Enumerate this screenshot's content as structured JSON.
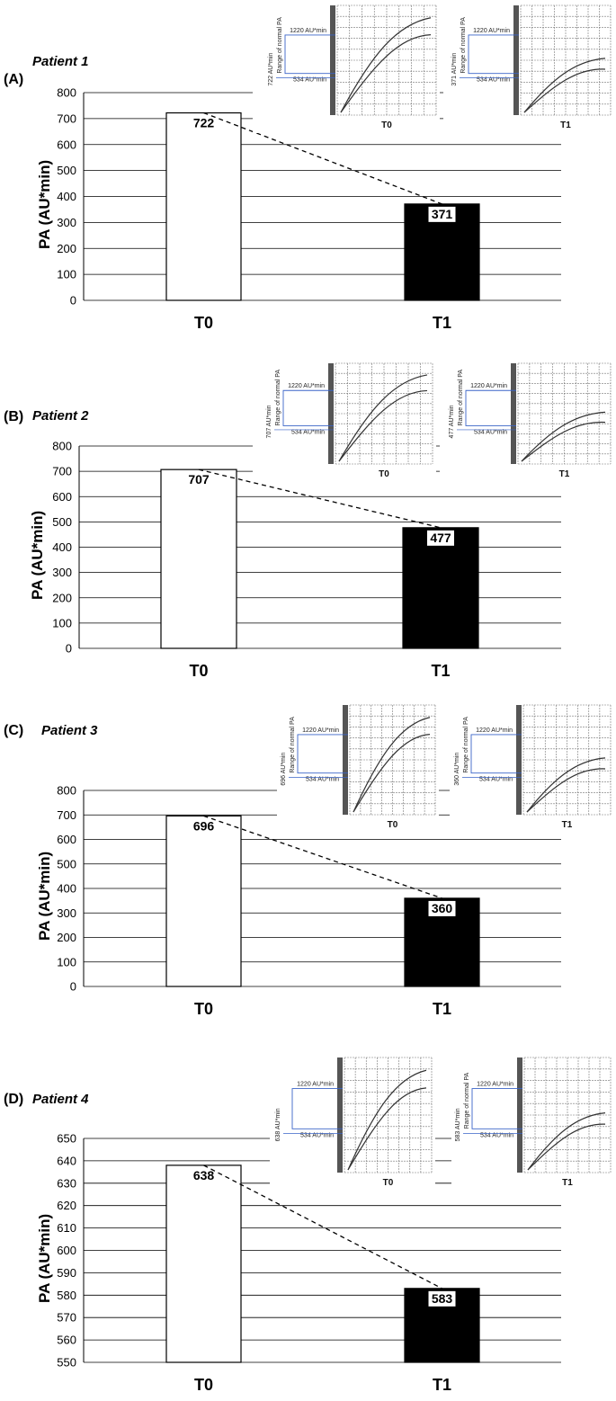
{
  "chart_data": [
    {
      "type": "bar",
      "panel_label": "(A)",
      "title": "Patient 1",
      "ylabel": "PA (AU*min)",
      "categories": [
        "T0",
        "T1"
      ],
      "values": [
        722,
        371
      ],
      "value_labels": [
        "722",
        "371"
      ],
      "bar_colors": [
        "#ffffff",
        "#000000"
      ],
      "ylim": [
        0,
        800
      ],
      "yticks": [
        "0",
        "100",
        "200",
        "300",
        "400",
        "500",
        "600",
        "700",
        "800"
      ],
      "grid": true,
      "connector": "dashed",
      "insets": [
        {
          "name": "T0",
          "value_text": "722 AU*min",
          "upper_text": "1220 AU*min",
          "lower_text": "534 AU*min",
          "range_text": "Range of normal PA"
        },
        {
          "name": "T1",
          "value_text": "371 AU*min",
          "upper_text": "1220 AU*min",
          "lower_text": "534 AU*min",
          "range_text": "Range of normal PA"
        }
      ]
    },
    {
      "type": "bar",
      "panel_label": "(B)",
      "title": "Patient 2",
      "ylabel": "PA (AU*min)",
      "categories": [
        "T0",
        "T1"
      ],
      "values": [
        707,
        477
      ],
      "value_labels": [
        "707",
        "477"
      ],
      "bar_colors": [
        "#ffffff",
        "#000000"
      ],
      "ylim": [
        0,
        800
      ],
      "yticks": [
        "0",
        "100",
        "200",
        "300",
        "400",
        "500",
        "600",
        "700",
        "800"
      ],
      "grid": true,
      "connector": "dashed",
      "insets": [
        {
          "name": "T0",
          "value_text": "707 AU*min",
          "upper_text": "1220 AU*min",
          "lower_text": "534 AU*min",
          "range_text": "Range of normal PA"
        },
        {
          "name": "T1",
          "value_text": "477 AU*min",
          "upper_text": "1220 AU*min",
          "lower_text": "534 AU*min",
          "range_text": "Range of normal PA"
        }
      ]
    },
    {
      "type": "bar",
      "panel_label": "(C)",
      "title": "Patient 3",
      "ylabel": "PA (AU*min)",
      "categories": [
        "T0",
        "T1"
      ],
      "values": [
        696,
        360
      ],
      "value_labels": [
        "696",
        "360"
      ],
      "bar_colors": [
        "#ffffff",
        "#000000"
      ],
      "ylim": [
        0,
        800
      ],
      "yticks": [
        "0",
        "100",
        "200",
        "300",
        "400",
        "500",
        "600",
        "700",
        "800"
      ],
      "grid": true,
      "connector": "dashed",
      "insets": [
        {
          "name": "T0",
          "value_text": "696 AU*min",
          "upper_text": "1220 AU*min",
          "lower_text": "534 AU*min",
          "range_text": "Range of normal PA"
        },
        {
          "name": "T1",
          "value_text": "360 AU*min",
          "upper_text": "1220 AU*min",
          "lower_text": "534 AU*min",
          "range_text": "Range of normal PA"
        }
      ]
    },
    {
      "type": "bar",
      "panel_label": "(D)",
      "title": "Patient 4",
      "ylabel": "PA (AU*min)",
      "categories": [
        "T0",
        "T1"
      ],
      "values": [
        638,
        583
      ],
      "value_labels": [
        "638",
        "583"
      ],
      "bar_colors": [
        "#ffffff",
        "#000000"
      ],
      "ylim": [
        550,
        650
      ],
      "yticks": [
        "550",
        "560",
        "570",
        "580",
        "590",
        "600",
        "610",
        "620",
        "630",
        "640",
        "650"
      ],
      "grid": true,
      "connector": "dashed",
      "insets": [
        {
          "name": "T0",
          "value_text": "638 AU*min",
          "upper_text": "1220 AU*min",
          "lower_text": "534 AU*min",
          "range_text": ""
        },
        {
          "name": "T1",
          "value_text": "583 AU*min",
          "upper_text": "1220 AU*min",
          "lower_text": "534 AU*min",
          "range_text": "Range of normal PA"
        }
      ]
    }
  ]
}
